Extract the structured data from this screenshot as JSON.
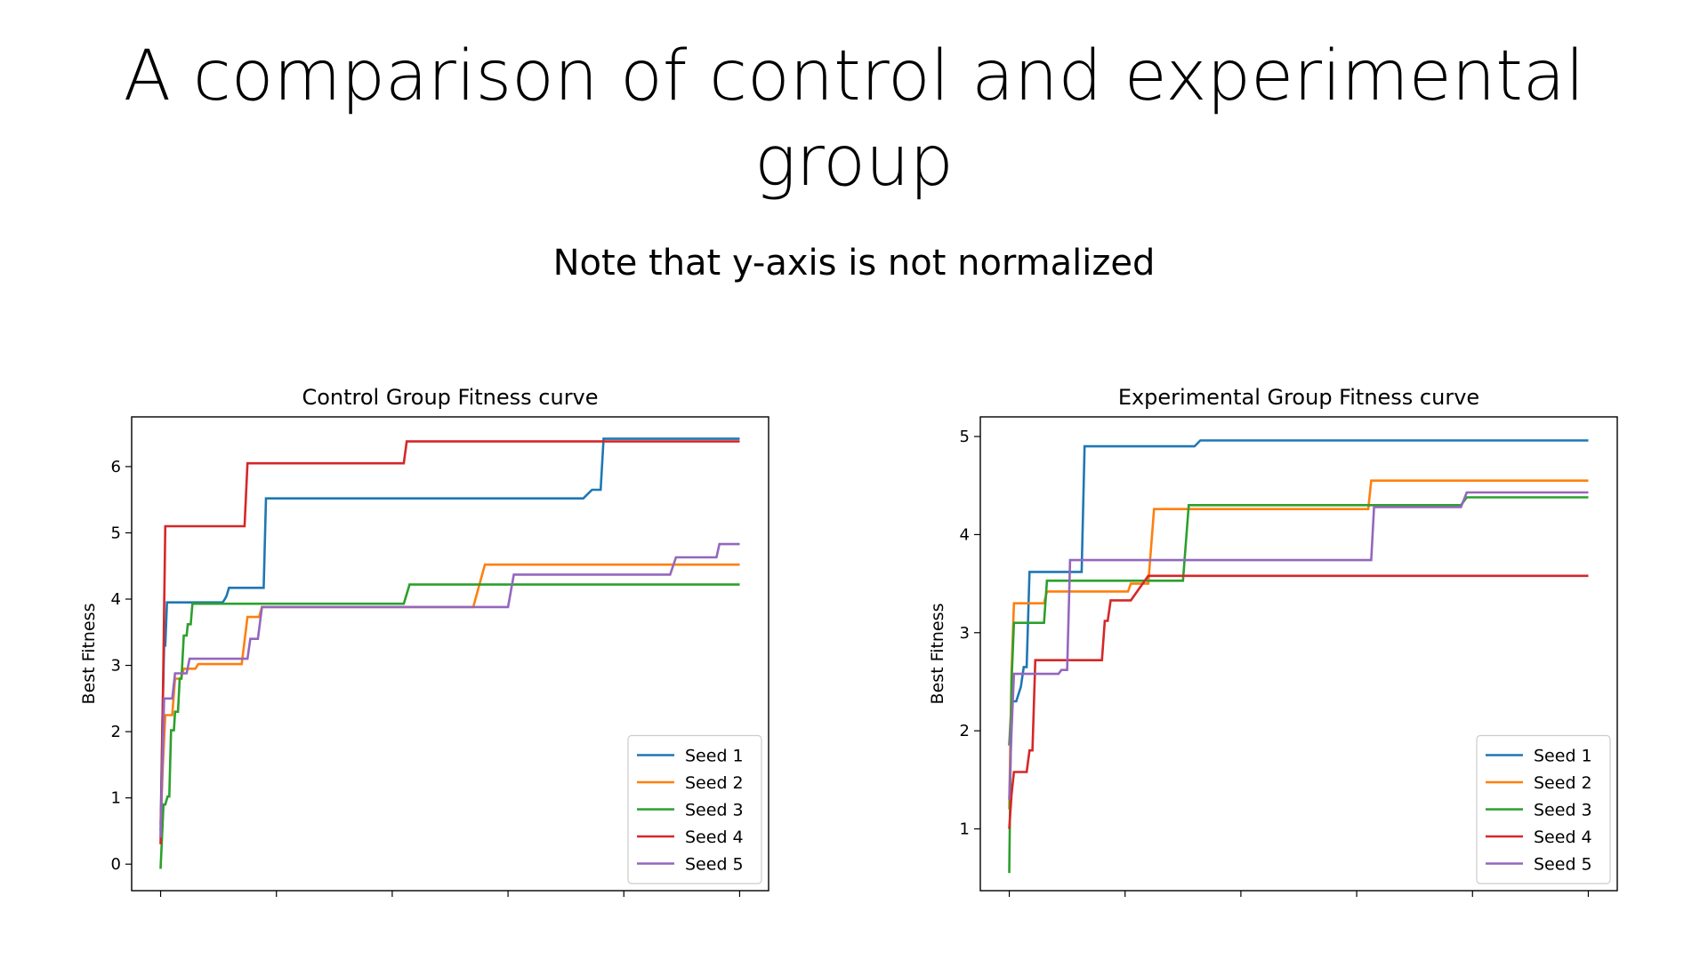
{
  "slide": {
    "title_line1": "A comparison of control and experimental",
    "title_line2": "group",
    "subtitle": "Note that y-axis is not normalized"
  },
  "chart_data": [
    {
      "type": "line",
      "title": "Control Group Fitness curve",
      "xlabel": "",
      "ylabel": "Best Fitness",
      "xlim": [
        -0.05,
        1.05
      ],
      "ylim": [
        -0.4,
        6.75
      ],
      "yticks": [
        0,
        1,
        2,
        3,
        4,
        5,
        6
      ],
      "xticks": [
        0,
        0.2,
        0.4,
        0.6,
        0.8,
        1.0
      ],
      "show_xtick_labels": false,
      "grid": false,
      "legend": "lower-right",
      "series": [
        {
          "name": "Seed 1",
          "color": "#1f77b4",
          "x": [
            0,
            0.003,
            0.006,
            0.008,
            0.011,
            0.107,
            0.111,
            0.114,
            0.118,
            0.178,
            0.182,
            0.187,
            0.73,
            0.745,
            0.76,
            0.765,
            1.0
          ],
          "y": [
            0.5,
            2.1,
            3.3,
            3.3,
            3.95,
            3.95,
            4.0,
            4.05,
            4.17,
            4.17,
            5.52,
            5.52,
            5.52,
            5.65,
            5.65,
            6.42,
            6.42
          ]
        },
        {
          "name": "Seed 2",
          "color": "#ff7f0e",
          "x": [
            0,
            0.004,
            0.008,
            0.02,
            0.025,
            0.035,
            0.04,
            0.06,
            0.065,
            0.07,
            0.14,
            0.15,
            0.17,
            0.175,
            0.54,
            0.56,
            1.0
          ],
          "y": [
            0.6,
            1.5,
            2.25,
            2.25,
            2.8,
            2.8,
            2.95,
            2.95,
            3.02,
            3.02,
            3.02,
            3.73,
            3.73,
            3.88,
            3.88,
            4.52,
            4.52
          ]
        },
        {
          "name": "Seed 3",
          "color": "#2ca02c",
          "x": [
            0,
            0.005,
            0.008,
            0.012,
            0.015,
            0.018,
            0.023,
            0.025,
            0.03,
            0.033,
            0.036,
            0.04,
            0.045,
            0.047,
            0.052,
            0.055,
            0.065,
            0.42,
            0.43,
            1.0
          ],
          "y": [
            -0.07,
            0.9,
            0.9,
            1.02,
            1.02,
            2.02,
            2.02,
            2.3,
            2.3,
            2.8,
            2.8,
            3.45,
            3.45,
            3.62,
            3.62,
            3.93,
            3.93,
            3.93,
            4.22,
            4.22
          ]
        },
        {
          "name": "Seed 4",
          "color": "#d62728",
          "x": [
            0,
            0.004,
            0.008,
            0.145,
            0.15,
            0.42,
            0.425,
            1.0
          ],
          "y": [
            0.3,
            2.5,
            5.1,
            5.1,
            6.05,
            6.05,
            6.38,
            6.38
          ]
        },
        {
          "name": "Seed 5",
          "color": "#9467bd",
          "x": [
            0,
            0.003,
            0.006,
            0.02,
            0.025,
            0.045,
            0.05,
            0.15,
            0.155,
            0.163,
            0.168,
            0.175,
            0.6,
            0.61,
            0.88,
            0.89,
            0.96,
            0.965,
            1.0
          ],
          "y": [
            0.4,
            1.5,
            2.5,
            2.5,
            2.88,
            2.88,
            3.1,
            3.1,
            3.4,
            3.4,
            3.4,
            3.88,
            3.88,
            4.37,
            4.37,
            4.63,
            4.63,
            4.83,
            4.83
          ]
        }
      ]
    },
    {
      "type": "line",
      "title": "Experimental Group Fitness curve",
      "xlabel": "",
      "ylabel": "Best Fitness",
      "xlim": [
        -0.05,
        1.05
      ],
      "ylim": [
        0.37,
        5.2
      ],
      "yticks": [
        1,
        2,
        3,
        4,
        5
      ],
      "xticks": [
        0,
        0.2,
        0.4,
        0.6,
        0.8,
        1.0
      ],
      "show_xtick_labels": false,
      "grid": false,
      "legend": "lower-right",
      "series": [
        {
          "name": "Seed 1",
          "color": "#1f77b4",
          "x": [
            0,
            0.004,
            0.008,
            0.012,
            0.02,
            0.025,
            0.03,
            0.035,
            0.038,
            0.125,
            0.13,
            0.32,
            0.33,
            1.0
          ],
          "y": [
            1.85,
            2.3,
            2.3,
            2.3,
            2.45,
            2.65,
            2.65,
            3.62,
            3.62,
            3.62,
            4.9,
            4.9,
            4.96,
            4.96
          ]
        },
        {
          "name": "Seed 2",
          "color": "#ff7f0e",
          "x": [
            0,
            0.004,
            0.008,
            0.06,
            0.065,
            0.1,
            0.105,
            0.205,
            0.21,
            0.24,
            0.25,
            0.62,
            0.625,
            1.0
          ],
          "y": [
            1.2,
            2.6,
            3.3,
            3.3,
            3.42,
            3.42,
            3.42,
            3.42,
            3.5,
            3.5,
            4.26,
            4.26,
            4.55,
            4.55
          ]
        },
        {
          "name": "Seed 3",
          "color": "#2ca02c",
          "x": [
            0,
            0.004,
            0.008,
            0.06,
            0.065,
            0.3,
            0.31,
            0.78,
            0.79,
            1.0
          ],
          "y": [
            0.55,
            2.5,
            3.1,
            3.1,
            3.53,
            3.53,
            4.3,
            4.3,
            4.38,
            4.38
          ]
        },
        {
          "name": "Seed 4",
          "color": "#d62728",
          "x": [
            0,
            0.004,
            0.008,
            0.03,
            0.035,
            0.04,
            0.045,
            0.16,
            0.165,
            0.17,
            0.175,
            0.2,
            0.21,
            0.24,
            0.245,
            1.0
          ],
          "y": [
            1.0,
            1.35,
            1.58,
            1.58,
            1.8,
            1.8,
            2.72,
            2.72,
            3.12,
            3.12,
            3.33,
            3.33,
            3.33,
            3.58,
            3.58,
            3.58
          ]
        },
        {
          "name": "Seed 5",
          "color": "#9467bd",
          "x": [
            0,
            0.004,
            0.008,
            0.085,
            0.09,
            0.1,
            0.105,
            0.11,
            0.625,
            0.63,
            0.78,
            0.79,
            1.0
          ],
          "y": [
            1.3,
            2.0,
            2.58,
            2.58,
            2.62,
            2.62,
            3.74,
            3.74,
            3.74,
            4.28,
            4.28,
            4.43,
            4.43
          ]
        }
      ]
    }
  ]
}
